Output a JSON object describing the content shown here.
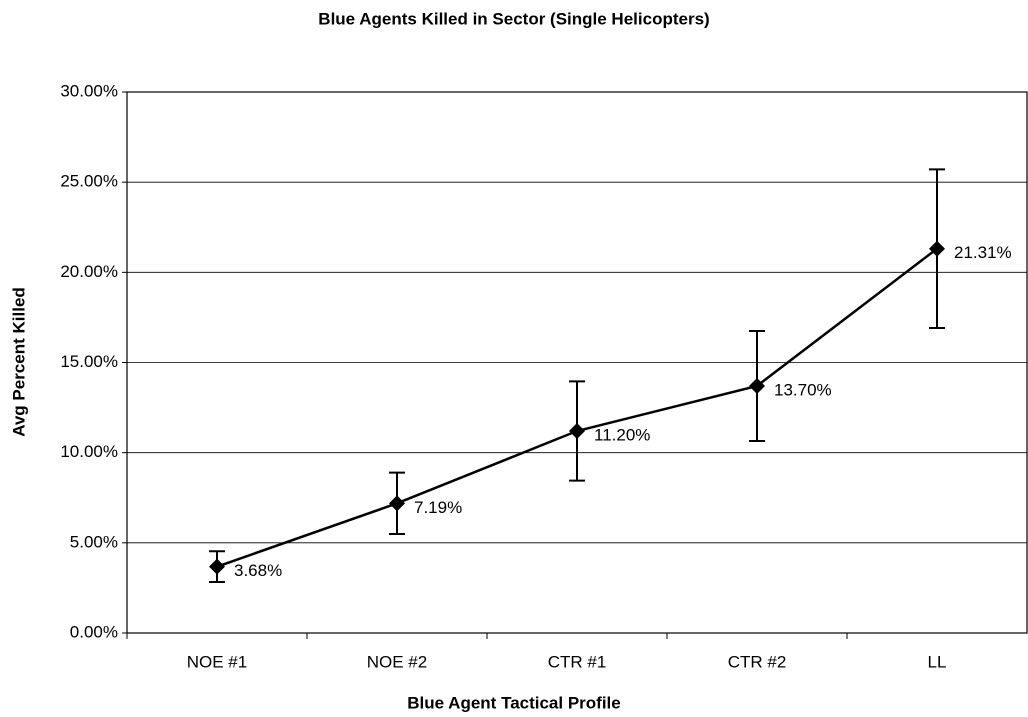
{
  "chart_data": {
    "type": "line",
    "title": "Blue Agents Killed in Sector (Single Helicopters)",
    "xlabel": "Blue Agent Tactical Profile",
    "ylabel": "Avg Percent Killed",
    "categories": [
      "NOE #1",
      "NOE #2",
      "CTR #1",
      "CTR #2",
      "LL"
    ],
    "series": [
      {
        "name": "Avg Percent Killed",
        "color": "#000000",
        "values": [
          3.68,
          7.19,
          11.2,
          13.7,
          21.31
        ],
        "value_labels": [
          "3.68%",
          "7.19%",
          "11.20%",
          "13.70%",
          "21.31%"
        ],
        "errors": [
          0.85,
          1.7,
          2.75,
          3.05,
          4.4
        ]
      }
    ],
    "ylim": [
      0,
      30
    ],
    "yticks": [
      {
        "value": 0,
        "label": "0.00%"
      },
      {
        "value": 5,
        "label": "5.00%"
      },
      {
        "value": 10,
        "label": "10.00%"
      },
      {
        "value": 15,
        "label": "15.00%"
      },
      {
        "value": 20,
        "label": "20.00%"
      },
      {
        "value": 25,
        "label": "25.00%"
      },
      {
        "value": 30,
        "label": "30.00%"
      }
    ],
    "grid": true
  }
}
